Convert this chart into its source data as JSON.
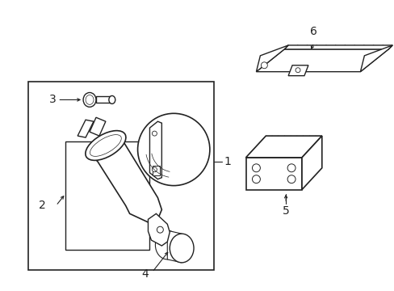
{
  "bg_color": "#ffffff",
  "line_color": "#222222",
  "fig_width": 4.89,
  "fig_height": 3.6,
  "dpi": 100
}
